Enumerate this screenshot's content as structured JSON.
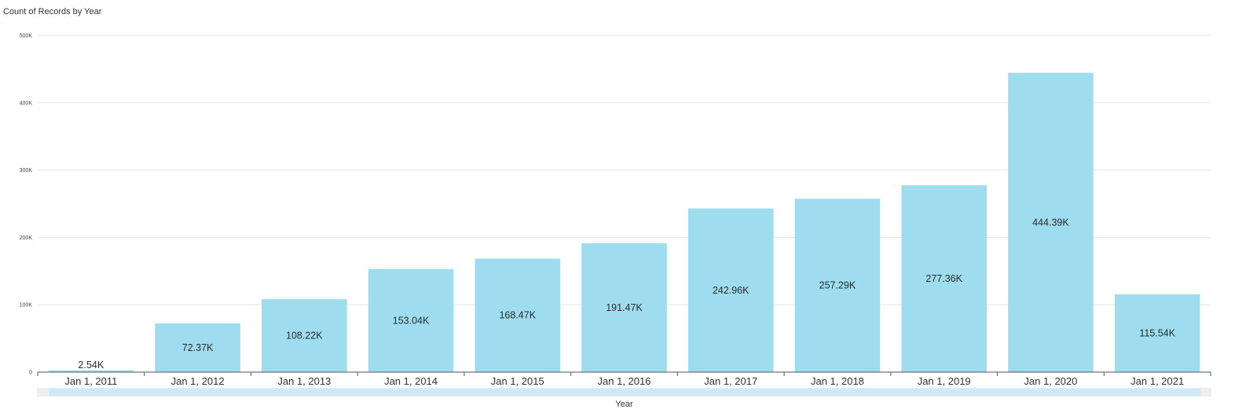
{
  "chart_data": {
    "type": "bar",
    "title": "Count of Records by Year",
    "xlabel": "Year",
    "ylabel": "",
    "ylim": [
      0,
      500000
    ],
    "yticks": [
      0,
      100000,
      200000,
      300000,
      400000,
      500000
    ],
    "ytick_labels": [
      "0",
      "100K",
      "200K",
      "300K",
      "400K",
      "500K"
    ],
    "grid": true,
    "legend": "none",
    "categories": [
      "Jan 1, 2011",
      "Jan 1, 2012",
      "Jan 1, 2013",
      "Jan 1, 2014",
      "Jan 1, 2015",
      "Jan 1, 2016",
      "Jan 1, 2017",
      "Jan 1, 2018",
      "Jan 1, 2019",
      "Jan 1, 2020",
      "Jan 1, 2021"
    ],
    "values": [
      2540,
      72370,
      108220,
      153040,
      168470,
      191470,
      242960,
      257290,
      277360,
      444390,
      115540
    ],
    "data_labels": [
      "2.54K",
      "72.37K",
      "108.22K",
      "153.04K",
      "168.47K",
      "191.47K",
      "242.96K",
      "257.29K",
      "277.36K",
      "444.39K",
      "115.54K"
    ],
    "colors": {
      "bar": "#9edcef",
      "grid": "#e6e6e6",
      "axis": "#555555",
      "scrollbar_track": "#eeeeee",
      "scrollbar_thumb": "#cdeaf6"
    }
  }
}
